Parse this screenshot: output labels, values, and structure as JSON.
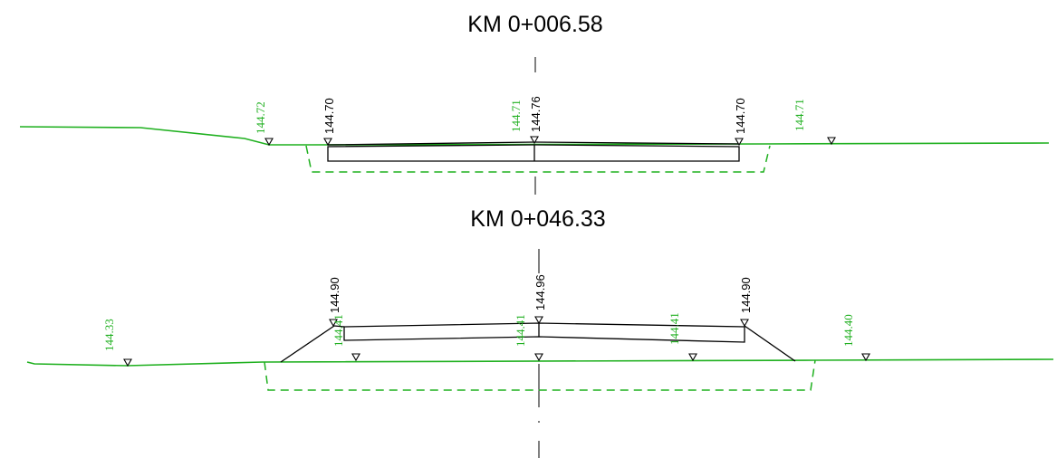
{
  "colors": {
    "ground": "#1fb01f",
    "road": "#000000",
    "background": "#ffffff"
  },
  "sections": [
    {
      "title": "KM 0+006.58",
      "design_levels": [
        "144.70",
        "144.76",
        "144.70"
      ],
      "ground_levels": [
        "144.72",
        "144.71",
        "144.71"
      ]
    },
    {
      "title": "KM 0+046.33",
      "design_levels": [
        "144.90",
        "144.96",
        "144.90"
      ],
      "ground_levels": [
        "144.33",
        "144.41",
        "144.41",
        "144.41",
        "144.40"
      ]
    }
  ]
}
